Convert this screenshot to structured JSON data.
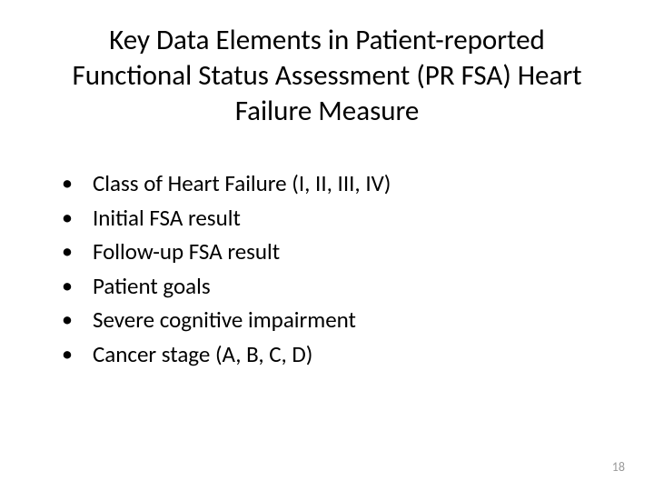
{
  "slide": {
    "title": "Key Data Elements in Patient-reported Functional Status Assessment (PR FSA) Heart Failure Measure",
    "bullets": [
      "Class of Heart Failure (I, II, III, IV)",
      "Initial FSA result",
      "Follow-up FSA result",
      "Patient goals",
      "Severe cognitive impairment",
      "Cancer stage (A, B, C, D)"
    ],
    "page_number": "18"
  },
  "styling": {
    "background_color": "#ffffff",
    "title_fontsize": 31,
    "title_color": "#000000",
    "bullet_fontsize": 25,
    "bullet_color": "#000000",
    "page_number_fontsize": 14,
    "page_number_color": "#9a9a9a",
    "font_family": "Calibri"
  }
}
